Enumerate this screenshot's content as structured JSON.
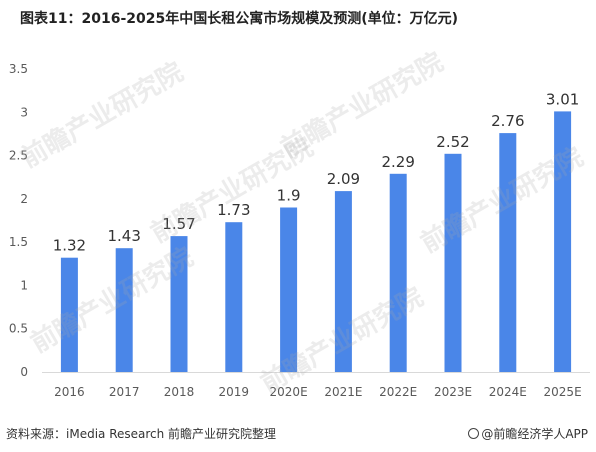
{
  "title": "图表11：2016-2025年中国长租公寓市场规模及预测(单位：万亿元)",
  "source_text": "资料来源：iMedia Research 前瞻产业研究院整理",
  "credit_text": "@前瞻经济学人APP",
  "watermark_text": "前瞻产业研究院",
  "colors": {
    "bar": "#4A86E8",
    "axis_text": "#595959",
    "label_text": "#333333"
  },
  "chart_data": {
    "type": "bar",
    "categories": [
      "2016",
      "2017",
      "2018",
      "2019",
      "2020E",
      "2021E",
      "2022E",
      "2023E",
      "2024E",
      "2025E"
    ],
    "values": [
      1.32,
      1.43,
      1.57,
      1.73,
      1.9,
      2.09,
      2.29,
      2.52,
      2.76,
      3.01
    ],
    "value_labels": [
      "1.32",
      "1.43",
      "1.57",
      "1.73",
      "1.9",
      "2.09",
      "2.29",
      "2.52",
      "2.76",
      "3.01"
    ],
    "yticks": [
      "0",
      "0.5",
      "1",
      "1.5",
      "2",
      "2.5",
      "3",
      "3.5"
    ],
    "ylim": [
      0,
      3.5
    ],
    "grid": false,
    "legend": "none"
  }
}
